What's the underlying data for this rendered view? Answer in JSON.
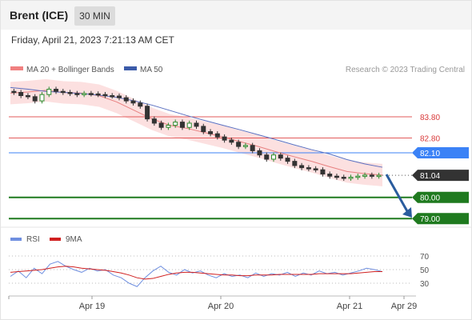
{
  "header": {
    "title": "Brent (ICE)",
    "timeframe": "30 MIN"
  },
  "datetime": "Friday, April 21, 2023 7:21:13 AM CET",
  "legend": {
    "ma_bollinger": "MA 20 + Bollinger Bands",
    "ma50": "MA 50",
    "credit": "Research © 2023 Trading Central"
  },
  "rsi_legend": {
    "rsi": "RSI",
    "ma9": "9MA"
  },
  "colors": {
    "up": "#2e8b2e",
    "down": "#333333",
    "target": "#1f7a1f",
    "pivot": "#3b82f6",
    "resistance": "#e35b5b",
    "band": "#f7c6c6",
    "ma50": "#5a6fc0",
    "arrow": "#2a5c9e",
    "rsi": "#6f8fe0",
    "rsi_ma": "#d02020"
  },
  "chart_data": [
    {
      "type": "candlestick",
      "instrument": "Brent (ICE)",
      "interval": "30 MIN",
      "x_ticks": [
        "Apr 19",
        "Apr 20",
        "Apr 21",
        "Apr 29"
      ],
      "series": [
        {
          "name": "MA 20 + Bollinger Bands",
          "values": [
            84.92,
            84.97,
            85.05,
            84.95,
            84.92,
            84.8,
            84.5,
            84.1,
            83.7,
            83.4,
            83.25,
            83.05,
            82.85,
            82.62,
            82.4,
            82.15,
            81.92,
            81.7,
            81.45,
            81.22,
            81.12,
            81.05
          ]
        },
        {
          "name": "MA 50",
          "values": [
            85.18,
            85.1,
            85.0,
            84.95,
            84.9,
            84.82,
            84.72,
            84.55,
            84.35,
            84.1,
            83.85,
            83.62,
            83.4,
            83.18,
            82.95,
            82.72,
            82.48,
            82.25,
            82.05,
            81.78,
            81.58,
            81.42
          ]
        }
      ],
      "candles_close": [
        84.95,
        84.8,
        84.75,
        84.55,
        84.85,
        85.1,
        85.0,
        84.95,
        84.9,
        84.85,
        84.9,
        84.88,
        84.85,
        84.8,
        84.78,
        84.7,
        84.55,
        84.45,
        84.3,
        83.7,
        83.5,
        83.3,
        83.4,
        83.55,
        83.3,
        83.5,
        83.35,
        83.1,
        83.0,
        82.85,
        82.7,
        82.6,
        82.4,
        82.45,
        82.2,
        82.0,
        81.8,
        82.0,
        81.85,
        81.7,
        81.5,
        81.4,
        81.35,
        81.3,
        81.1,
        81.0,
        80.95,
        80.9,
        80.95,
        81.0,
        81.05,
        81.0,
        81.04
      ],
      "levels": [
        {
          "label": "83.80",
          "value": 83.8,
          "kind": "resistance"
        },
        {
          "label": "82.80",
          "value": 82.8,
          "kind": "resistance"
        },
        {
          "label": "82.10",
          "value": 82.1,
          "kind": "pivot"
        },
        {
          "label": "81.04",
          "value": 81.04,
          "kind": "last"
        },
        {
          "label": "80.00",
          "value": 80.0,
          "kind": "target"
        },
        {
          "label": "79.00",
          "value": 79.0,
          "kind": "target"
        }
      ]
    },
    {
      "type": "line",
      "name": "RSI",
      "y_ticks": [
        "70",
        "50",
        "30"
      ],
      "ylim": [
        20,
        80
      ],
      "series": [
        {
          "name": "RSI",
          "values": [
            40,
            48,
            38,
            52,
            44,
            58,
            62,
            55,
            50,
            46,
            52,
            48,
            50,
            42,
            38,
            30,
            25,
            38,
            48,
            55,
            46,
            42,
            50,
            45,
            48,
            42,
            38,
            44,
            40,
            42,
            38,
            45,
            40,
            44,
            42,
            46,
            40,
            45,
            42,
            48,
            44,
            46,
            42,
            45,
            48,
            52,
            50,
            47
          ]
        },
        {
          "name": "9MA",
          "values": [
            46,
            47,
            48,
            49,
            50,
            52,
            54,
            55,
            54,
            52,
            51,
            50,
            49,
            47,
            45,
            42,
            38,
            36,
            37,
            40,
            43,
            45,
            46,
            46,
            45,
            44,
            43,
            42,
            42,
            41,
            41,
            42,
            42,
            42,
            43,
            43,
            43,
            43,
            43,
            44,
            44,
            44,
            44,
            44,
            45,
            46,
            47,
            47
          ]
        }
      ]
    }
  ]
}
